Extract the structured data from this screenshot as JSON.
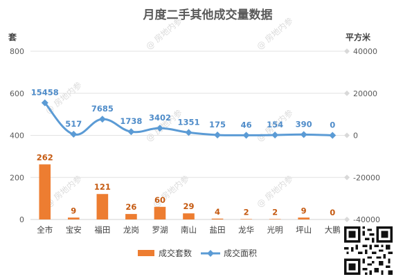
{
  "chart_data": {
    "type": "bar",
    "title": "月度二手其他成交量数据",
    "categories": [
      "全市",
      "宝安",
      "福田",
      "龙岗",
      "罗湖",
      "南山",
      "盐田",
      "龙华",
      "光明",
      "坪山",
      "大鹏"
    ],
    "series": [
      {
        "name": "成交套数",
        "type": "bar",
        "axis": "left",
        "color": "#ED7D31",
        "values": [
          262,
          9,
          121,
          26,
          60,
          29,
          4,
          2,
          2,
          9,
          0
        ]
      },
      {
        "name": "成交面积",
        "type": "line",
        "axis": "right",
        "color": "#5B9BD5",
        "values": [
          15458,
          517,
          7685,
          1738,
          3402,
          1351,
          175,
          46,
          154,
          390,
          0
        ]
      }
    ],
    "y_left": {
      "label": "套",
      "ylim": [
        0,
        800
      ],
      "ticks": [
        "0",
        "200",
        "400",
        "600",
        "800"
      ]
    },
    "y_right": {
      "label": "平方米",
      "ylim": [
        -40000,
        40000
      ],
      "ticks": [
        "-40000",
        "-20000",
        "0",
        "20000",
        "40000"
      ]
    },
    "grid": true,
    "legend_position": "bottom",
    "watermark": "@ 房地内参"
  }
}
